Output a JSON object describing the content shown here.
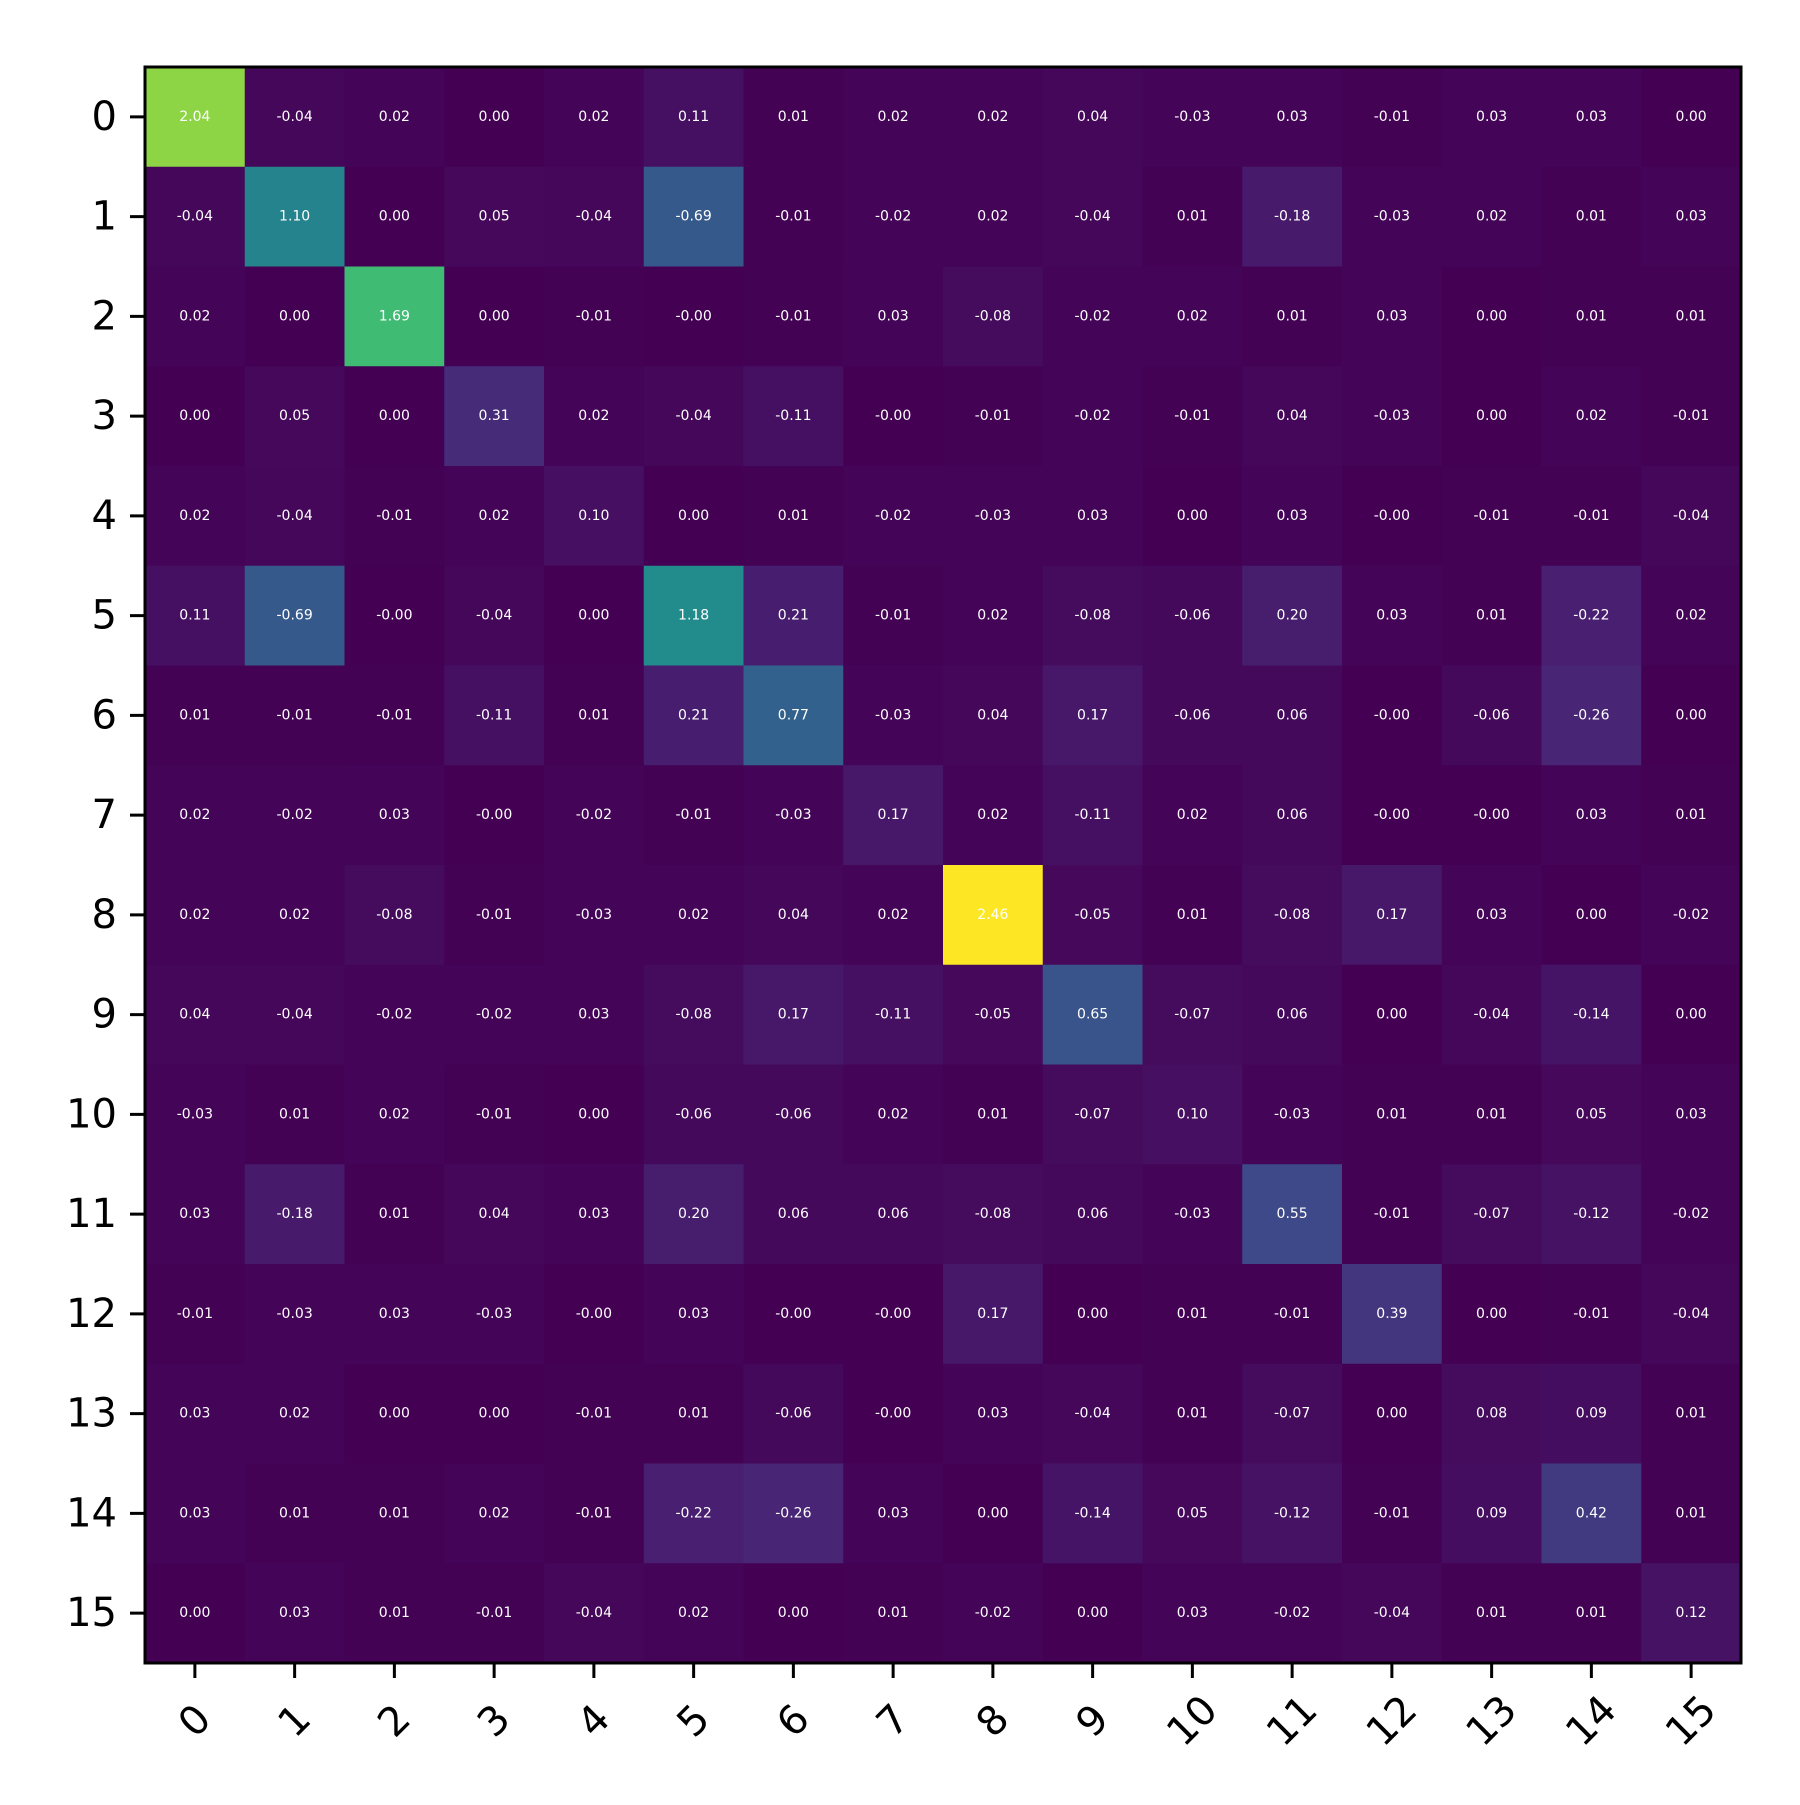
{
  "chart_data": {
    "type": "heatmap",
    "title": "",
    "xlabel": "",
    "ylabel": "",
    "colormap": "viridis",
    "value_range": [
      -0.69,
      2.46
    ],
    "grid": false,
    "colorbar": false,
    "x_tick_labels": [
      "0",
      "1",
      "2",
      "3",
      "4",
      "5",
      "6",
      "7",
      "8",
      "9",
      "10",
      "11",
      "12",
      "13",
      "14",
      "15"
    ],
    "y_tick_labels": [
      "0",
      "1",
      "2",
      "3",
      "4",
      "5",
      "6",
      "7",
      "8",
      "9",
      "10",
      "11",
      "12",
      "13",
      "14",
      "15"
    ],
    "x_tick_rotation_deg": 45,
    "values": [
      [
        2.04,
        -0.04,
        0.02,
        0.0,
        0.02,
        0.11,
        0.01,
        0.02,
        0.02,
        0.04,
        -0.03,
        0.03,
        -0.01,
        0.03,
        0.03,
        0.0
      ],
      [
        -0.04,
        1.1,
        0.0,
        0.05,
        -0.04,
        -0.69,
        -0.01,
        -0.02,
        0.02,
        -0.04,
        0.01,
        -0.18,
        -0.03,
        0.02,
        0.01,
        0.03
      ],
      [
        0.02,
        0.0,
        1.69,
        0.0,
        -0.01,
        -0.0,
        -0.01,
        0.03,
        -0.08,
        -0.02,
        0.02,
        0.01,
        0.03,
        0.0,
        0.01,
        0.01
      ],
      [
        0.0,
        0.05,
        0.0,
        0.31,
        0.02,
        -0.04,
        -0.11,
        -0.0,
        -0.01,
        -0.02,
        -0.01,
        0.04,
        -0.03,
        0.0,
        0.02,
        -0.01
      ],
      [
        0.02,
        -0.04,
        -0.01,
        0.02,
        0.1,
        0.0,
        0.01,
        -0.02,
        -0.03,
        0.03,
        0.0,
        0.03,
        -0.0,
        -0.01,
        -0.01,
        -0.04
      ],
      [
        0.11,
        -0.69,
        -0.0,
        -0.04,
        0.0,
        1.18,
        0.21,
        -0.01,
        0.02,
        -0.08,
        -0.06,
        0.2,
        0.03,
        0.01,
        -0.22,
        0.02
      ],
      [
        0.01,
        -0.01,
        -0.01,
        -0.11,
        0.01,
        0.21,
        0.77,
        -0.03,
        0.04,
        0.17,
        -0.06,
        0.06,
        -0.0,
        -0.06,
        -0.26,
        0.0
      ],
      [
        0.02,
        -0.02,
        0.03,
        -0.0,
        -0.02,
        -0.01,
        -0.03,
        0.17,
        0.02,
        -0.11,
        0.02,
        0.06,
        -0.0,
        -0.0,
        0.03,
        0.01
      ],
      [
        0.02,
        0.02,
        -0.08,
        -0.01,
        -0.03,
        0.02,
        0.04,
        0.02,
        2.46,
        -0.05,
        0.01,
        -0.08,
        0.17,
        0.03,
        0.0,
        -0.02
      ],
      [
        0.04,
        -0.04,
        -0.02,
        -0.02,
        0.03,
        -0.08,
        0.17,
        -0.11,
        -0.05,
        0.65,
        -0.07,
        0.06,
        0.0,
        -0.04,
        -0.14,
        0.0
      ],
      [
        -0.03,
        0.01,
        0.02,
        -0.01,
        0.0,
        -0.06,
        -0.06,
        0.02,
        0.01,
        -0.07,
        0.1,
        -0.03,
        0.01,
        0.01,
        0.05,
        0.03
      ],
      [
        0.03,
        -0.18,
        0.01,
        0.04,
        0.03,
        0.2,
        0.06,
        0.06,
        -0.08,
        0.06,
        -0.03,
        0.55,
        -0.01,
        -0.07,
        -0.12,
        -0.02
      ],
      [
        -0.01,
        -0.03,
        0.03,
        -0.03,
        -0.0,
        0.03,
        -0.0,
        -0.0,
        0.17,
        0.0,
        0.01,
        -0.01,
        0.39,
        0.0,
        -0.01,
        -0.04
      ],
      [
        0.03,
        0.02,
        0.0,
        0.0,
        -0.01,
        0.01,
        -0.06,
        -0.0,
        0.03,
        -0.04,
        0.01,
        -0.07,
        0.0,
        0.08,
        0.09,
        0.01
      ],
      [
        0.03,
        0.01,
        0.01,
        0.02,
        -0.01,
        -0.22,
        -0.26,
        0.03,
        0.0,
        -0.14,
        0.05,
        -0.12,
        -0.01,
        0.09,
        0.42,
        0.01
      ],
      [
        0.0,
        0.03,
        0.01,
        -0.01,
        -0.04,
        0.02,
        0.0,
        0.01,
        -0.02,
        0.0,
        0.03,
        -0.02,
        -0.04,
        0.01,
        0.01,
        0.12
      ]
    ]
  }
}
